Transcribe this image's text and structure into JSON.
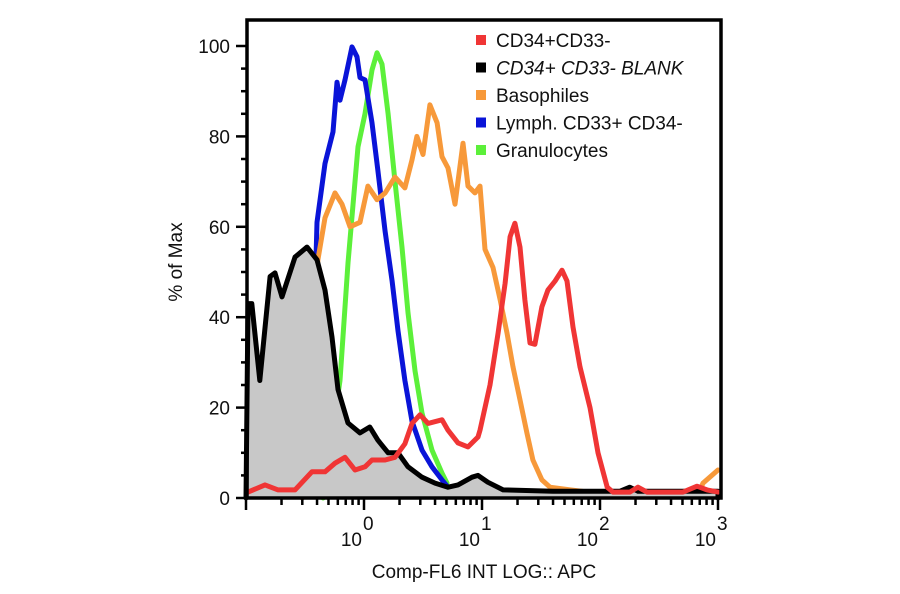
{
  "chart_data": {
    "type": "line",
    "title": "",
    "xlabel": "Comp-FL6 INT LOG:: APC",
    "ylabel": "% of Max",
    "xscale": "log",
    "xlim": [
      0.1,
      1000
    ],
    "ylim": [
      0,
      106
    ],
    "grid": false,
    "legend_position": "top-right",
    "y_ticks": [
      0,
      20,
      40,
      60,
      80,
      100
    ],
    "y_tick_labels": [
      "0",
      "20",
      "40",
      "60",
      "80",
      "100"
    ],
    "y_minor_step": 5,
    "x_ticks": [
      1,
      10,
      100,
      1000
    ],
    "x_tick_labels": [
      {
        "base": "10",
        "exp": "0"
      },
      {
        "base": "10",
        "exp": "1"
      },
      {
        "base": "10",
        "exp": "2"
      },
      {
        "base": "10",
        "exp": "3"
      }
    ],
    "series": [
      {
        "name": "Granulocytes",
        "color": "#5cf03a",
        "filled": false,
        "points": [
          [
            0.45,
            0
          ],
          [
            0.626,
            26
          ],
          [
            0.732,
            52
          ],
          [
            0.889,
            77.7
          ],
          [
            1.02,
            85
          ],
          [
            1.17,
            94.7
          ],
          [
            1.29,
            98.5
          ],
          [
            1.42,
            96
          ],
          [
            1.6,
            85
          ],
          [
            1.83,
            70
          ],
          [
            2.1,
            55.5
          ],
          [
            2.36,
            41
          ],
          [
            2.71,
            28
          ],
          [
            3.1,
            18.8
          ],
          [
            3.77,
            10.6
          ],
          [
            4.58,
            5.5
          ],
          [
            5.05,
            3.3
          ]
        ]
      },
      {
        "name": "Lymph. CD33+ CD34-",
        "color": "#0a14d8",
        "filled": false,
        "points": [
          [
            0.3,
            0
          ],
          [
            0.384,
            45
          ],
          [
            0.4,
            61
          ],
          [
            0.467,
            74
          ],
          [
            0.546,
            81
          ],
          [
            0.59,
            92
          ],
          [
            0.626,
            88
          ],
          [
            0.69,
            92.5
          ],
          [
            0.791,
            99.8
          ],
          [
            0.873,
            97.6
          ],
          [
            0.925,
            93
          ],
          [
            1.02,
            92.5
          ],
          [
            1.17,
            83
          ],
          [
            1.31,
            72.6
          ],
          [
            1.51,
            59
          ],
          [
            1.73,
            48
          ],
          [
            1.94,
            37
          ],
          [
            2.22,
            26
          ],
          [
            2.55,
            17
          ],
          [
            3.1,
            10.6
          ],
          [
            3.77,
            6.9
          ],
          [
            4.58,
            4
          ],
          [
            5.15,
            2.4
          ]
        ]
      },
      {
        "name": "Basophiles",
        "color": "#f7993a",
        "filled": false,
        "points": [
          [
            0.3,
            0
          ],
          [
            0.407,
            52.7
          ],
          [
            0.467,
            62
          ],
          [
            0.568,
            67.5
          ],
          [
            0.651,
            65
          ],
          [
            0.761,
            60
          ],
          [
            0.925,
            61
          ],
          [
            1.08,
            69
          ],
          [
            1.29,
            66
          ],
          [
            1.51,
            67.5
          ],
          [
            1.83,
            71
          ],
          [
            2.22,
            68.6
          ],
          [
            2.55,
            74.8
          ],
          [
            2.81,
            80
          ],
          [
            3.16,
            76
          ],
          [
            3.62,
            87
          ],
          [
            4.16,
            83
          ],
          [
            4.58,
            75.5
          ],
          [
            5.15,
            73
          ],
          [
            5.9,
            65
          ],
          [
            6.9,
            78.5
          ],
          [
            7.61,
            69
          ],
          [
            8.73,
            67.5
          ],
          [
            9.62,
            69
          ],
          [
            10.6,
            55
          ],
          [
            12.4,
            51
          ],
          [
            14.2,
            44
          ],
          [
            16.3,
            36.5
          ],
          [
            18.3,
            29
          ],
          [
            21.0,
            21.7
          ],
          [
            24.0,
            14.4
          ],
          [
            27.0,
            8.4
          ],
          [
            32.2,
            4
          ],
          [
            37.7,
            2.4
          ],
          [
            55.7,
            1.8
          ],
          [
            100,
            1
          ],
          [
            700,
            1.5
          ],
          [
            746,
            3.3
          ],
          [
            1000,
            6.2
          ]
        ]
      },
      {
        "name": "CD34+ CD33- BLANK",
        "color": "#000000",
        "filled": true,
        "fill_color": "#c8c8c8",
        "points": [
          [
            0.1,
            0
          ],
          [
            0.104,
            43
          ],
          [
            0.112,
            43
          ],
          [
            0.131,
            26
          ],
          [
            0.16,
            49
          ],
          [
            0.176,
            49.8
          ],
          [
            0.202,
            44.5
          ],
          [
            0.26,
            53.3
          ],
          [
            0.329,
            55.5
          ],
          [
            0.4,
            52.7
          ],
          [
            0.467,
            46
          ],
          [
            0.536,
            35.6
          ],
          [
            0.602,
            24
          ],
          [
            0.732,
            16.6
          ],
          [
            0.925,
            14.4
          ],
          [
            1.12,
            15.7
          ],
          [
            1.31,
            12.8
          ],
          [
            1.6,
            10
          ],
          [
            1.94,
            10
          ],
          [
            2.36,
            6.9
          ],
          [
            3.1,
            4.6
          ],
          [
            4.0,
            3.3
          ],
          [
            5.15,
            2.4
          ],
          [
            6.26,
            2.9
          ],
          [
            8.23,
            4.6
          ],
          [
            9.25,
            5
          ],
          [
            11.2,
            3.5
          ],
          [
            15.1,
            1.8
          ],
          [
            40,
            1.5
          ],
          [
            148,
            1.5
          ],
          [
            179,
            2.4
          ],
          [
            210,
            1.5
          ],
          [
            1000,
            1.5
          ],
          [
            1000,
            0
          ]
        ]
      },
      {
        "name": "CD34+CD33-",
        "color": "#f03535",
        "filled": false,
        "points": [
          [
            0.104,
            1.3
          ],
          [
            0.145,
            2.9
          ],
          [
            0.187,
            1.8
          ],
          [
            0.26,
            1.8
          ],
          [
            0.362,
            5.8
          ],
          [
            0.467,
            5.8
          ],
          [
            0.568,
            7.7
          ],
          [
            0.69,
            9
          ],
          [
            0.839,
            6.2
          ],
          [
            1.02,
            6.9
          ],
          [
            1.17,
            8.4
          ],
          [
            1.51,
            8.4
          ],
          [
            1.83,
            9
          ],
          [
            2.22,
            12
          ],
          [
            2.55,
            16.5
          ],
          [
            2.98,
            18.4
          ],
          [
            3.49,
            16.5
          ],
          [
            4.58,
            17.3
          ],
          [
            5.15,
            15
          ],
          [
            6.26,
            12.2
          ],
          [
            7.61,
            11.3
          ],
          [
            9.25,
            13.5
          ],
          [
            9.62,
            15
          ],
          [
            11.7,
            25
          ],
          [
            13.7,
            36.5
          ],
          [
            15.7,
            47.5
          ],
          [
            17.3,
            57.8
          ],
          [
            19.0,
            60.8
          ],
          [
            21.0,
            55.5
          ],
          [
            23.1,
            43.8
          ],
          [
            25.5,
            34.3
          ],
          [
            28.1,
            34
          ],
          [
            32.2,
            42.3
          ],
          [
            36.2,
            46
          ],
          [
            41.6,
            48
          ],
          [
            47.6,
            50.4
          ],
          [
            52.5,
            48
          ],
          [
            59,
            37.8
          ],
          [
            67.7,
            29
          ],
          [
            82.2,
            20
          ],
          [
            96.2,
            10
          ],
          [
            115,
            2.4
          ],
          [
            129,
            1.3
          ],
          [
            179,
            1.3
          ],
          [
            210,
            2.4
          ],
          [
            250,
            1.3
          ],
          [
            505,
            1.3
          ],
          [
            664,
            2.6
          ],
          [
            807,
            1.8
          ],
          [
            1000,
            1.3
          ]
        ]
      }
    ],
    "legend": [
      {
        "label": "CD34+CD33-",
        "color": "#f03535",
        "italic": false
      },
      {
        "label": "CD34+ CD33- BLANK",
        "color": "#000000",
        "italic": true
      },
      {
        "label": "Basophiles",
        "color": "#f7993a",
        "italic": false
      },
      {
        "label": "Lymph. CD33+ CD34-",
        "color": "#0a14d8",
        "italic": false
      },
      {
        "label": "Granulocytes",
        "color": "#5cf03a",
        "italic": false
      }
    ]
  }
}
